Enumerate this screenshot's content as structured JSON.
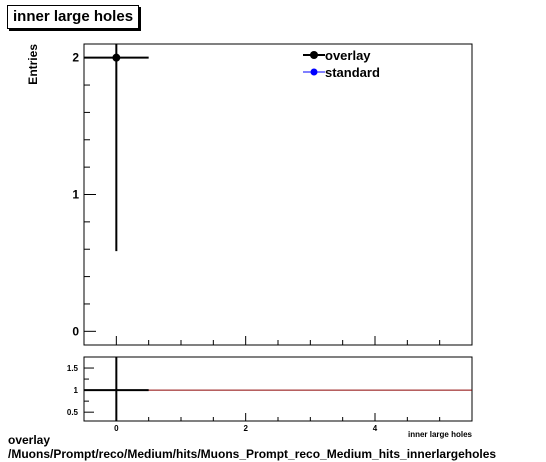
{
  "title": "inner large holes",
  "caption": {
    "line1": "overlay",
    "line2": "/Muons/Prompt/reco/Medium/hits/Muons_Prompt_reco_Medium_hits_innerlargeholes"
  },
  "colors": {
    "overlay": "#000000",
    "standard": "#0000ff",
    "ratio": "#8b0000"
  },
  "chart_data": [
    {
      "type": "scatter",
      "title": "inner large holes",
      "xlabel": "inner large holes",
      "ylabel": "Entries",
      "xlim": [
        -0.5,
        5.5
      ],
      "ylim": [
        -0.1,
        2.1
      ],
      "yticks": [
        0,
        1,
        2
      ],
      "xticks": [
        0,
        2,
        4
      ],
      "legend_position": "top-right",
      "series": [
        {
          "name": "overlay",
          "x": [
            0
          ],
          "y": [
            2
          ],
          "xerr": [
            0.5
          ],
          "yerr": [
            1.414
          ],
          "color": "#000000"
        },
        {
          "name": "standard",
          "x": [],
          "y": [],
          "color": "#0000ff"
        }
      ]
    },
    {
      "type": "line",
      "title": "",
      "xlim": [
        -0.5,
        5.5
      ],
      "ylim": [
        0.3,
        1.75
      ],
      "yticks": [
        0.5,
        1,
        1.5
      ],
      "ytick_labels": [
        "0.5",
        "1",
        "1.5"
      ],
      "xticks": [
        0,
        2,
        4
      ],
      "reference_line": 1,
      "series": [
        {
          "name": "",
          "x": [
            0
          ],
          "y": [
            1
          ],
          "xerr": [
            0.5
          ],
          "yerr": [
            1
          ],
          "color": "#000000"
        }
      ]
    }
  ]
}
